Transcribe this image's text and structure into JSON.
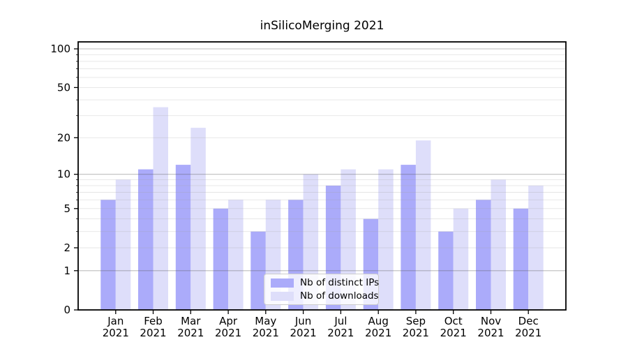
{
  "figure": {
    "background": "#ffffff"
  },
  "chart_data": {
    "type": "bar",
    "title": "inSilicoMerging 2021",
    "categories": [
      "Jan 2021",
      "Feb 2021",
      "Mar 2021",
      "Apr 2021",
      "May 2021",
      "Jun 2021",
      "Jul 2021",
      "Aug 2021",
      "Sep 2021",
      "Oct 2021",
      "Nov 2021",
      "Dec 2021"
    ],
    "series": [
      {
        "name": "Nb of distinct IPs",
        "color": "#ababfa",
        "values": [
          6,
          11,
          12,
          5,
          3,
          6,
          8,
          4,
          12,
          3,
          6,
          5
        ]
      },
      {
        "name": "Nb of downloads",
        "color": "#dedefa",
        "values": [
          9,
          35,
          24,
          6,
          6,
          10,
          11,
          11,
          19,
          5,
          9,
          8
        ]
      }
    ],
    "xlabel": "",
    "ylabel": "",
    "yscale": "log1p",
    "yticks": [
      0,
      1,
      2,
      5,
      10,
      20,
      50,
      100
    ],
    "minor_yticks": [
      2,
      3,
      4,
      5,
      6,
      7,
      8,
      9,
      20,
      30,
      40,
      50,
      60,
      70,
      80,
      90
    ],
    "major_grid_values": [
      1,
      10,
      100
    ],
    "ylim": [
      0,
      113
    ],
    "grid": true,
    "legend_position": "lower center",
    "colors": {
      "major_gridline": "#bdbdbd",
      "minor_gridline": "#e6e6e6",
      "spine": "#000000",
      "tick_label": "#000000"
    }
  }
}
